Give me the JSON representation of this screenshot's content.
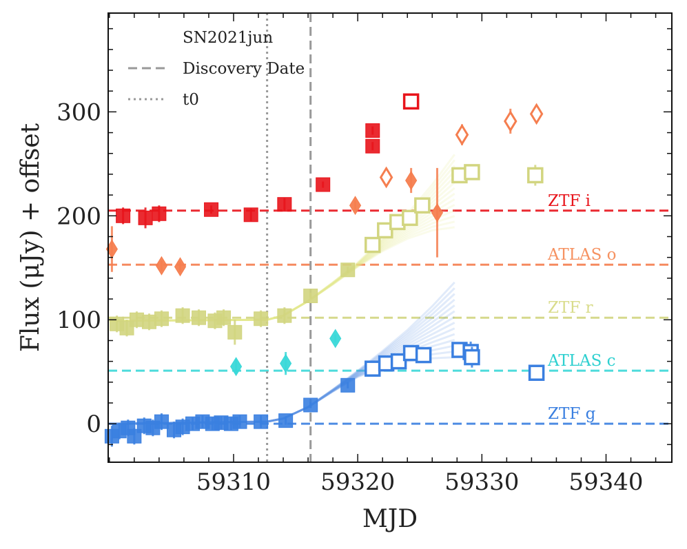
{
  "chart_data": {
    "type": "scatter",
    "title": "",
    "xlabel": "MJD",
    "ylabel": "Flux (μJy) + offset",
    "xlim": [
      59299.9,
      59345.3
    ],
    "ylim": [
      -37,
      395
    ],
    "xticks": [
      59310,
      59320,
      59330,
      59340
    ],
    "yticks": [
      0,
      100,
      200,
      300
    ],
    "grid": false,
    "legend": {
      "placement": "top-left",
      "entries": [
        {
          "label": "SN2021jun",
          "style": "none"
        },
        {
          "label": "Discovery Date",
          "style": "dashed"
        },
        {
          "label": "t0",
          "style": "dotted"
        }
      ]
    },
    "vlines": [
      {
        "x": 59312.7,
        "style": "dotted",
        "color": "#999999"
      },
      {
        "x": 59316.2,
        "style": "dashed",
        "color": "#999999"
      }
    ],
    "bands": [
      {
        "name": "ZTF i",
        "offset": 205,
        "color": "#e8141b",
        "text_color": "#e8141b"
      },
      {
        "name": "ATLAS o",
        "offset": 153,
        "color": "#f57e4f",
        "text_color": "#f69261"
      },
      {
        "name": "ZTF r",
        "offset": 102,
        "color": "#d2d580",
        "text_color": "#d9dc8b"
      },
      {
        "name": "ATLAS c",
        "offset": 51,
        "color": "#3ad8d8",
        "text_color": "#2ed0d0"
      },
      {
        "name": "ZTF g",
        "offset": 0,
        "color": "#3a7fe0",
        "text_color": "#3a7fe0"
      }
    ],
    "models": [
      {
        "band": "ZTF r",
        "color": "#e3eb8a",
        "x": [
          59300,
          59312.7,
          59314,
          59316,
          59318,
          59320,
          59322,
          59324,
          59326,
          59327.8
        ],
        "y": [
          99,
          100,
          104,
          118,
          135,
          153,
          172,
          190,
          208,
          224
        ],
        "spread": [
          0,
          0,
          0,
          0,
          1,
          2,
          6,
          12,
          22,
          35
        ]
      },
      {
        "band": "ZTF g",
        "color": "#5a8fe6",
        "x": [
          59300,
          59312.7,
          59314,
          59316,
          59318,
          59320,
          59322,
          59324,
          59326,
          59327.8
        ],
        "y": [
          0,
          2,
          5,
          16,
          32,
          48,
          62,
          75,
          88,
          100
        ],
        "spread": [
          0,
          0,
          0,
          0,
          1,
          3,
          8,
          15,
          25,
          36
        ]
      }
    ],
    "series": [
      {
        "name": "ZTF i",
        "marker": "square",
        "color": "#e8141b",
        "points": [
          {
            "x": 59301.1,
            "y": 200,
            "err": 8,
            "filled": true
          },
          {
            "x": 59302.9,
            "y": 198,
            "err": 10,
            "filled": true
          },
          {
            "x": 59304.0,
            "y": 202,
            "err": 8,
            "filled": true
          },
          {
            "x": 59308.2,
            "y": 206,
            "err": 4,
            "filled": true
          },
          {
            "x": 59311.4,
            "y": 201,
            "err": 6,
            "filled": true
          },
          {
            "x": 59314.1,
            "y": 211,
            "err": 6,
            "filled": true
          },
          {
            "x": 59317.2,
            "y": 230,
            "err": 3,
            "filled": true
          },
          {
            "x": 59321.2,
            "y": 282,
            "err": 4,
            "filled": true
          },
          {
            "x": 59321.2,
            "y": 267,
            "err": 4,
            "filled": true
          },
          {
            "x": 59324.3,
            "y": 310,
            "err": 5,
            "filled": false
          }
        ]
      },
      {
        "name": "ATLAS o",
        "marker": "diamond",
        "color": "#f57e4f",
        "points": [
          {
            "x": 59300.2,
            "y": 168,
            "err": 22,
            "filled": true
          },
          {
            "x": 59304.2,
            "y": 152,
            "err": 5,
            "filled": true
          },
          {
            "x": 59305.7,
            "y": 151,
            "err": 5,
            "filled": true
          },
          {
            "x": 59319.8,
            "y": 210,
            "err": 5,
            "filled": true
          },
          {
            "x": 59322.3,
            "y": 237,
            "err": 6,
            "filled": false
          },
          {
            "x": 59324.3,
            "y": 234,
            "err": 12,
            "filled": true
          },
          {
            "x": 59326.4,
            "y": 203,
            "err": 43,
            "filled": true
          },
          {
            "x": 59328.4,
            "y": 278,
            "err": 10,
            "filled": false
          },
          {
            "x": 59332.3,
            "y": 291,
            "err": 12,
            "filled": false
          },
          {
            "x": 59334.4,
            "y": 298,
            "err": 6,
            "filled": false
          }
        ]
      },
      {
        "name": "ZTF r",
        "marker": "square",
        "color": "#d2d580",
        "points": [
          {
            "x": 59300.6,
            "y": 96,
            "err": 8,
            "filled": true
          },
          {
            "x": 59301.4,
            "y": 92,
            "err": 8,
            "filled": true
          },
          {
            "x": 59302.2,
            "y": 100,
            "err": 8,
            "filled": true
          },
          {
            "x": 59303.2,
            "y": 98,
            "err": 8,
            "filled": true
          },
          {
            "x": 59304.2,
            "y": 101,
            "err": 8,
            "filled": true
          },
          {
            "x": 59305.9,
            "y": 104,
            "err": 8,
            "filled": true
          },
          {
            "x": 59307.2,
            "y": 102,
            "err": 8,
            "filled": true
          },
          {
            "x": 59308.5,
            "y": 99,
            "err": 8,
            "filled": true
          },
          {
            "x": 59309.2,
            "y": 102,
            "err": 8,
            "filled": true
          },
          {
            "x": 59310.1,
            "y": 88,
            "err": 12,
            "filled": true
          },
          {
            "x": 59312.2,
            "y": 101,
            "err": 8,
            "filled": true
          },
          {
            "x": 59314.1,
            "y": 104,
            "err": 8,
            "filled": true
          },
          {
            "x": 59316.2,
            "y": 123,
            "err": 3,
            "filled": true
          },
          {
            "x": 59319.2,
            "y": 148,
            "err": 3,
            "filled": true
          },
          {
            "x": 59321.2,
            "y": 172,
            "err": 4,
            "filled": false
          },
          {
            "x": 59322.2,
            "y": 186,
            "err": 4,
            "filled": false
          },
          {
            "x": 59323.2,
            "y": 194,
            "err": 4,
            "filled": false
          },
          {
            "x": 59324.2,
            "y": 198,
            "err": 4,
            "filled": false
          },
          {
            "x": 59325.2,
            "y": 210,
            "err": 4,
            "filled": false
          },
          {
            "x": 59328.2,
            "y": 239,
            "err": 6,
            "filled": false
          },
          {
            "x": 59329.2,
            "y": 242,
            "err": 6,
            "filled": false
          },
          {
            "x": 59334.3,
            "y": 239,
            "err": 10,
            "filled": false
          }
        ]
      },
      {
        "name": "ATLAS c",
        "marker": "diamond",
        "color": "#3ad8d8",
        "points": [
          {
            "x": 59310.2,
            "y": 55,
            "err": 7,
            "filled": true
          },
          {
            "x": 59314.2,
            "y": 58,
            "err": 11,
            "filled": true
          },
          {
            "x": 59318.2,
            "y": 82,
            "err": 4,
            "filled": true
          }
        ]
      },
      {
        "name": "ZTF g",
        "marker": "square",
        "color": "#3a7fe0",
        "points": [
          {
            "x": 59300.2,
            "y": -12,
            "err": 10,
            "filled": true
          },
          {
            "x": 59300.8,
            "y": -7,
            "err": 8,
            "filled": true
          },
          {
            "x": 59301.5,
            "y": -4,
            "err": 8,
            "filled": true
          },
          {
            "x": 59302.0,
            "y": -12,
            "err": 8,
            "filled": true
          },
          {
            "x": 59302.8,
            "y": -2,
            "err": 8,
            "filled": true
          },
          {
            "x": 59303.5,
            "y": -4,
            "err": 8,
            "filled": true
          },
          {
            "x": 59304.2,
            "y": 2,
            "err": 8,
            "filled": true
          },
          {
            "x": 59305.2,
            "y": -6,
            "err": 8,
            "filled": true
          },
          {
            "x": 59305.9,
            "y": -3,
            "err": 8,
            "filled": true
          },
          {
            "x": 59306.7,
            "y": 0,
            "err": 6,
            "filled": true
          },
          {
            "x": 59307.5,
            "y": 2,
            "err": 6,
            "filled": true
          },
          {
            "x": 59308.3,
            "y": 0,
            "err": 6,
            "filled": true
          },
          {
            "x": 59309.0,
            "y": 1,
            "err": 6,
            "filled": true
          },
          {
            "x": 59309.8,
            "y": 0,
            "err": 6,
            "filled": true
          },
          {
            "x": 59310.5,
            "y": 2,
            "err": 6,
            "filled": true
          },
          {
            "x": 59312.2,
            "y": 2,
            "err": 6,
            "filled": true
          },
          {
            "x": 59314.2,
            "y": 3,
            "err": 4,
            "filled": true
          },
          {
            "x": 59316.2,
            "y": 18,
            "err": 3,
            "filled": true
          },
          {
            "x": 59319.2,
            "y": 37,
            "err": 3,
            "filled": true
          },
          {
            "x": 59321.2,
            "y": 53,
            "err": 4,
            "filled": false
          },
          {
            "x": 59322.3,
            "y": 58,
            "err": 4,
            "filled": false
          },
          {
            "x": 59323.3,
            "y": 60,
            "err": 4,
            "filled": false
          },
          {
            "x": 59324.3,
            "y": 68,
            "err": 4,
            "filled": false
          },
          {
            "x": 59325.3,
            "y": 66,
            "err": 4,
            "filled": false
          },
          {
            "x": 59328.2,
            "y": 71,
            "err": 6,
            "filled": false
          },
          {
            "x": 59329.1,
            "y": 69,
            "err": 10,
            "filled": false
          },
          {
            "x": 59329.2,
            "y": 64,
            "err": 10,
            "filled": false
          },
          {
            "x": 59334.4,
            "y": 49,
            "err": 6,
            "filled": false
          }
        ]
      }
    ]
  }
}
